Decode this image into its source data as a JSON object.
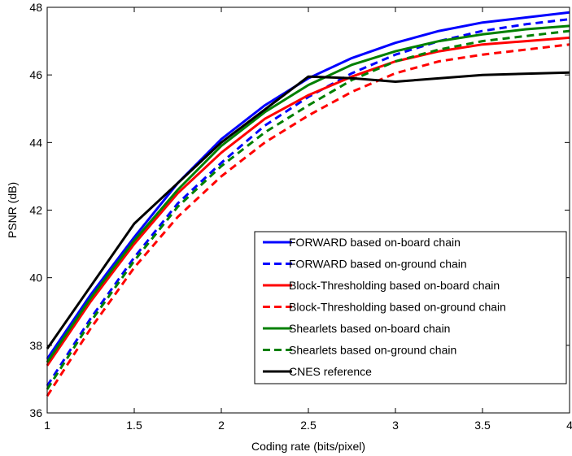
{
  "chart_data": {
    "type": "line",
    "title": "",
    "xlabel": "Coding rate (bits/pixel)",
    "ylabel": "PSNR (dB)",
    "xlim": [
      1,
      4
    ],
    "ylim": [
      36,
      48
    ],
    "xticks": [
      1,
      1.5,
      2,
      2.5,
      3,
      3.5,
      4
    ],
    "xtick_labels": [
      "1",
      "1.5",
      "2",
      "2.5",
      "3",
      "3.5",
      "4"
    ],
    "yticks": [
      36,
      38,
      40,
      42,
      44,
      46,
      48
    ],
    "ytick_labels": [
      "36",
      "38",
      "40",
      "42",
      "44",
      "46",
      "48"
    ],
    "grid": false,
    "legend_position": "bottom-right",
    "series": [
      {
        "name": "FORWARD based on-board chain",
        "color": "#0000ff",
        "dash": "solid",
        "x": [
          1,
          1.25,
          1.5,
          1.75,
          2,
          2.25,
          2.5,
          2.75,
          3,
          3.25,
          3.5,
          3.75,
          4
        ],
        "y": [
          37.6,
          39.5,
          41.2,
          42.8,
          44.1,
          45.1,
          45.9,
          46.5,
          46.95,
          47.3,
          47.55,
          47.7,
          47.85
        ]
      },
      {
        "name": "FORWARD based on-ground chain",
        "color": "#0000ff",
        "dash": "dashed",
        "x": [
          1,
          1.25,
          1.5,
          1.75,
          2,
          2.25,
          2.5,
          2.75,
          3,
          3.25,
          3.5,
          3.75,
          4
        ],
        "y": [
          36.8,
          38.8,
          40.6,
          42.2,
          43.4,
          44.5,
          45.35,
          46.05,
          46.6,
          47.0,
          47.3,
          47.5,
          47.65
        ]
      },
      {
        "name": "Block-Thresholding based on-board chain",
        "color": "#ff0000",
        "dash": "solid",
        "x": [
          1,
          1.25,
          1.5,
          1.75,
          2,
          2.25,
          2.5,
          2.75,
          3,
          3.25,
          3.5,
          3.75,
          4
        ],
        "y": [
          37.4,
          39.3,
          41.0,
          42.5,
          43.7,
          44.7,
          45.4,
          45.95,
          46.4,
          46.7,
          46.9,
          47.0,
          47.1
        ]
      },
      {
        "name": "Block-Thresholding based on-ground chain",
        "color": "#ff0000",
        "dash": "dashed",
        "x": [
          1,
          1.25,
          1.5,
          1.75,
          2,
          2.25,
          2.5,
          2.75,
          3,
          3.25,
          3.5,
          3.75,
          4
        ],
        "y": [
          36.5,
          38.5,
          40.3,
          41.8,
          43.0,
          44.0,
          44.8,
          45.5,
          46.05,
          46.4,
          46.6,
          46.75,
          46.9
        ]
      },
      {
        "name": "Shearlets based on-board chain",
        "color": "#008000",
        "dash": "solid",
        "x": [
          1,
          1.25,
          1.5,
          1.75,
          2,
          2.25,
          2.5,
          2.75,
          3,
          3.25,
          3.5,
          3.75,
          4
        ],
        "y": [
          37.5,
          39.4,
          41.1,
          42.6,
          43.9,
          44.9,
          45.7,
          46.3,
          46.7,
          47.0,
          47.2,
          47.35,
          47.45
        ]
      },
      {
        "name": "Shearlets based on-ground chain",
        "color": "#008000",
        "dash": "dashed",
        "x": [
          1,
          1.25,
          1.5,
          1.75,
          2,
          2.25,
          2.5,
          2.75,
          3,
          3.25,
          3.5,
          3.75,
          4
        ],
        "y": [
          36.7,
          38.7,
          40.5,
          42.1,
          43.3,
          44.3,
          45.1,
          45.85,
          46.4,
          46.75,
          47.0,
          47.15,
          47.3
        ]
      },
      {
        "name": "CNES reference",
        "color": "#000000",
        "dash": "solid",
        "x": [
          1,
          1.5,
          2,
          2.5,
          2.75,
          3,
          3.5,
          4
        ],
        "y": [
          37.9,
          41.6,
          44.0,
          45.95,
          45.9,
          45.8,
          46.0,
          46.07
        ]
      }
    ]
  }
}
